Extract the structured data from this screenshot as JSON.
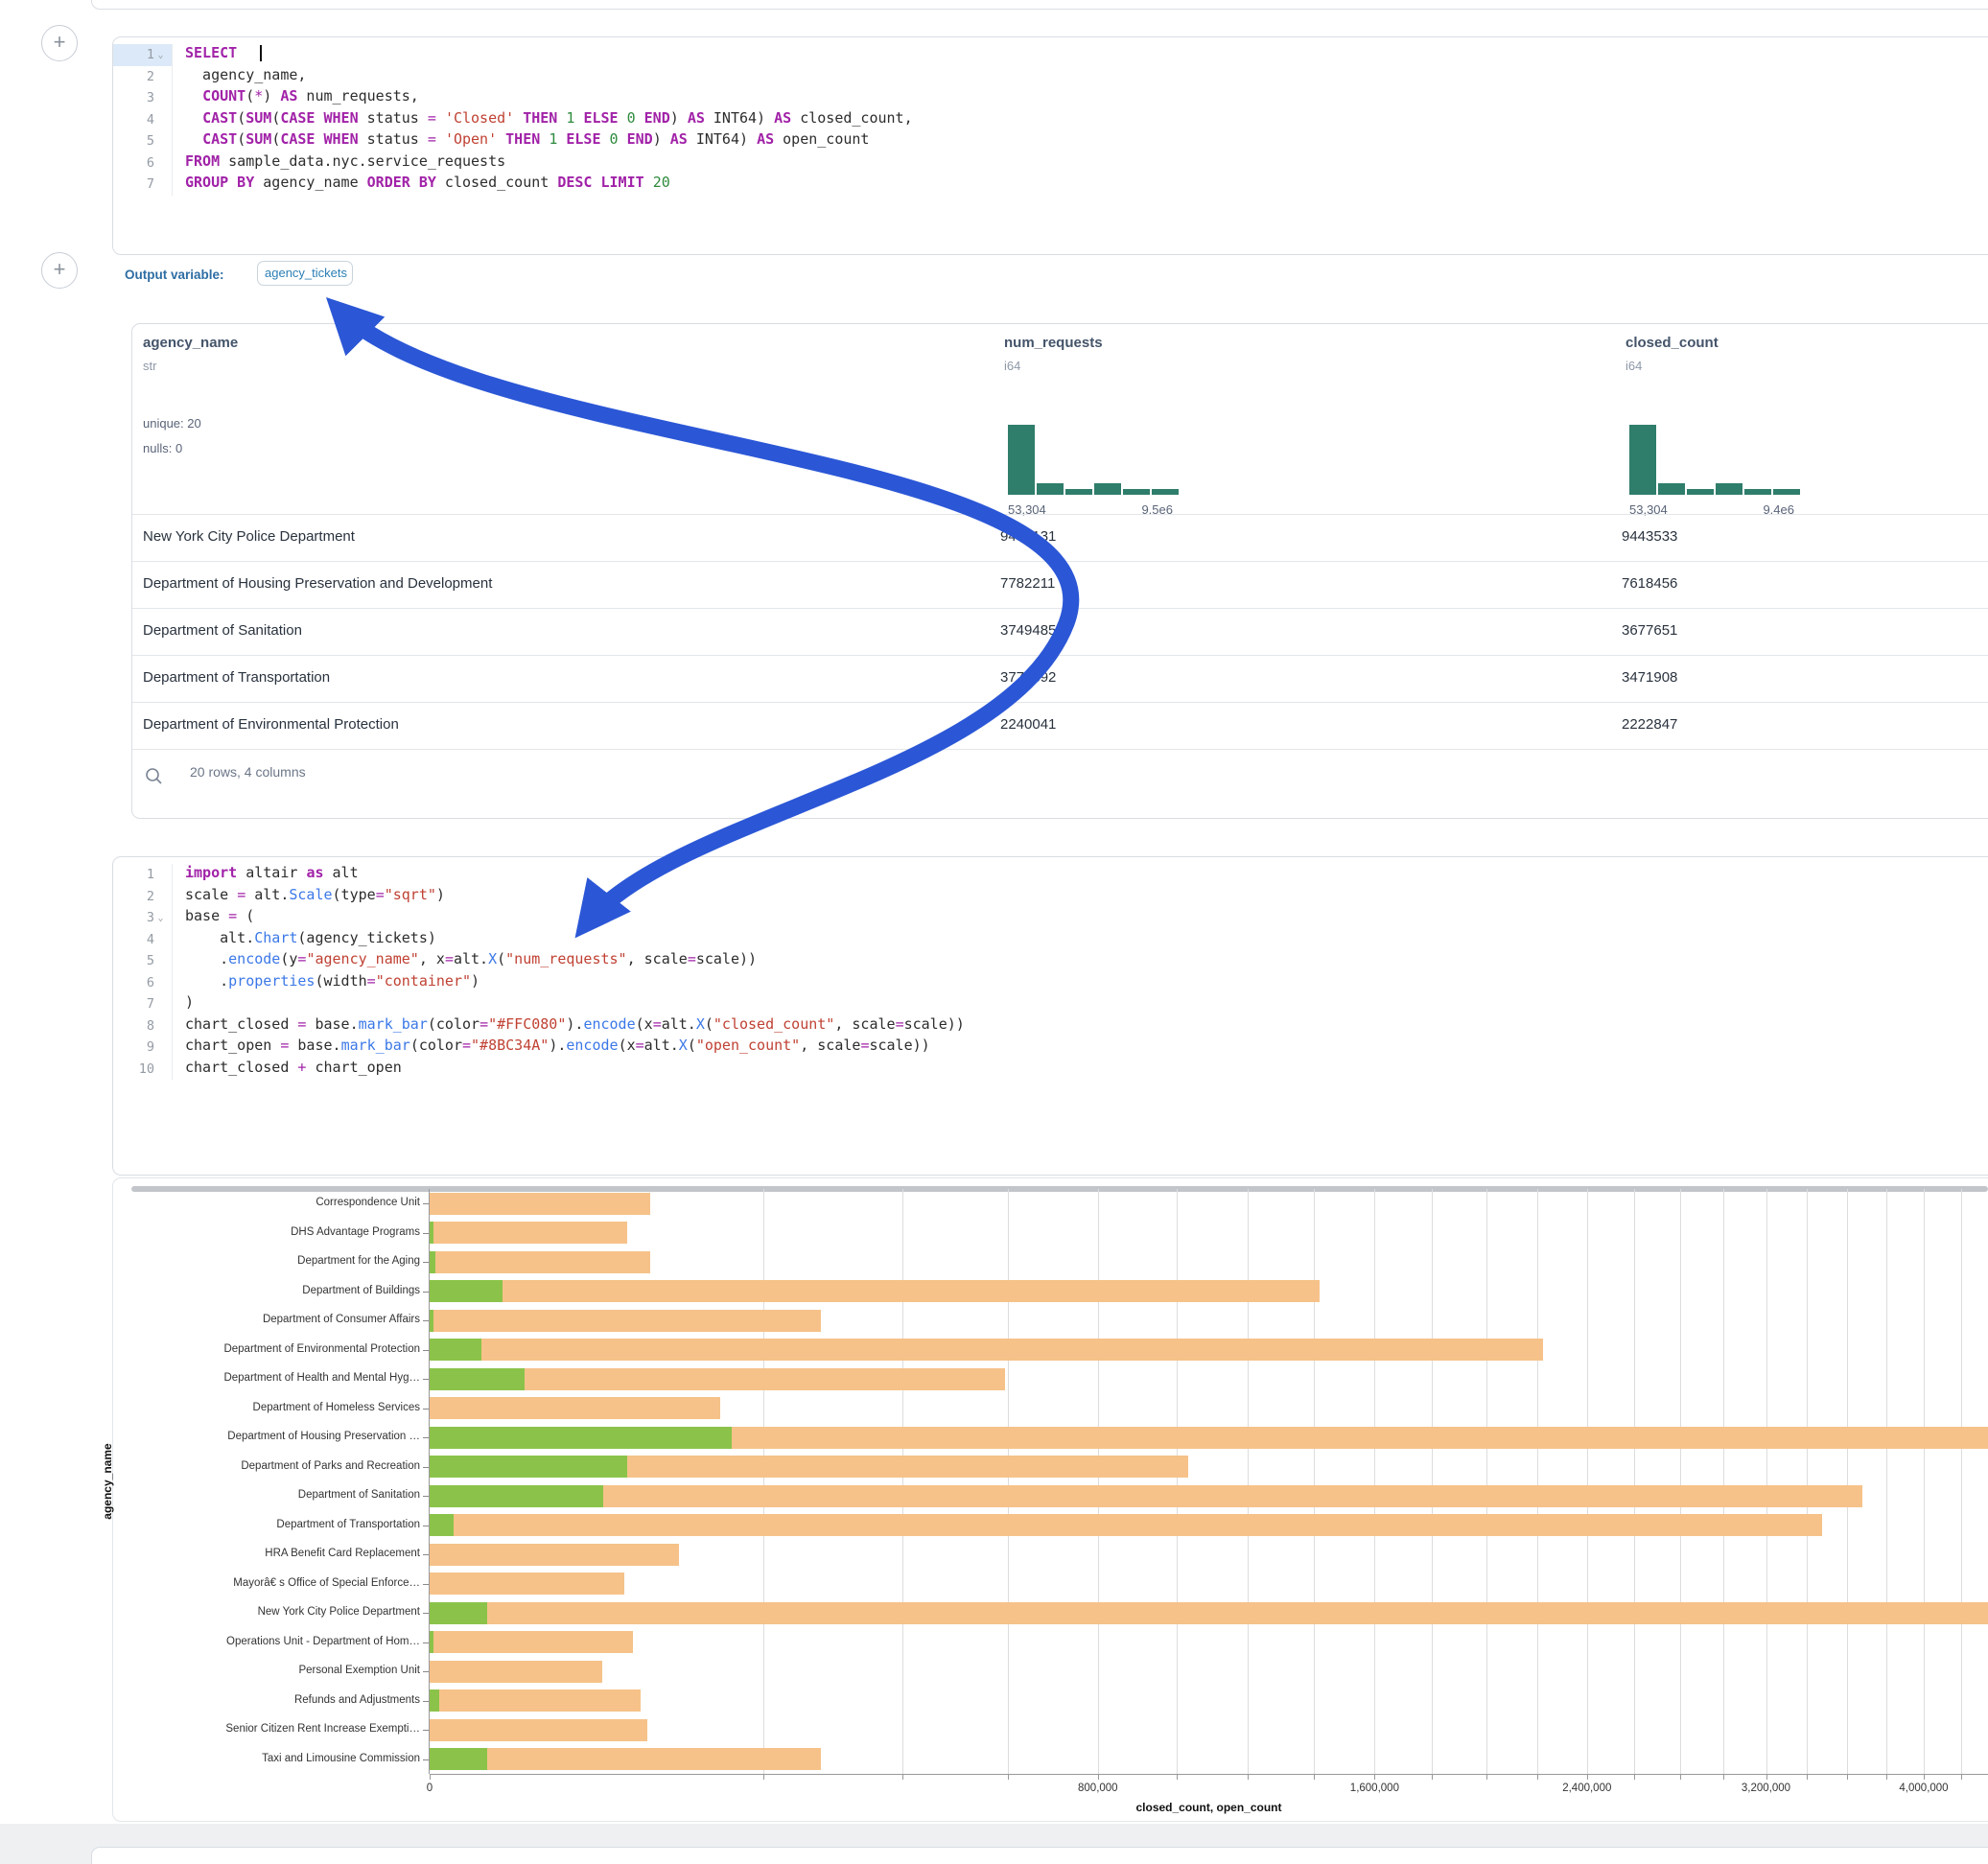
{
  "sql_cell": {
    "lines": [
      {
        "n": "1",
        "fold": true,
        "hl": true,
        "cursor": true,
        "t": [
          [
            "k",
            "SELECT"
          ]
        ]
      },
      {
        "n": "2",
        "t": [
          [
            "p",
            "  agency_name,"
          ]
        ]
      },
      {
        "n": "3",
        "t": [
          [
            "p",
            "  "
          ],
          [
            "k",
            "COUNT"
          ],
          [
            "p",
            "("
          ],
          [
            "o",
            "*"
          ],
          [
            "p",
            ") "
          ],
          [
            "k",
            "AS"
          ],
          [
            "p",
            " num_requests,"
          ]
        ]
      },
      {
        "n": "4",
        "t": [
          [
            "p",
            "  "
          ],
          [
            "k",
            "CAST"
          ],
          [
            "p",
            "("
          ],
          [
            "k",
            "SUM"
          ],
          [
            "p",
            "("
          ],
          [
            "k",
            "CASE"
          ],
          [
            "p",
            " "
          ],
          [
            "k",
            "WHEN"
          ],
          [
            "p",
            " status "
          ],
          [
            "o",
            "="
          ],
          [
            "p",
            " "
          ],
          [
            "s",
            "'Closed'"
          ],
          [
            "p",
            " "
          ],
          [
            "k",
            "THEN"
          ],
          [
            "p",
            " "
          ],
          [
            "n",
            "1"
          ],
          [
            "p",
            " "
          ],
          [
            "k",
            "ELSE"
          ],
          [
            "p",
            " "
          ],
          [
            "n",
            "0"
          ],
          [
            "p",
            " "
          ],
          [
            "k",
            "END"
          ],
          [
            "p",
            ") "
          ],
          [
            "k",
            "AS"
          ],
          [
            "p",
            " INT64) "
          ],
          [
            "k",
            "AS"
          ],
          [
            "p",
            " closed_count,"
          ]
        ]
      },
      {
        "n": "5",
        "t": [
          [
            "p",
            "  "
          ],
          [
            "k",
            "CAST"
          ],
          [
            "p",
            "("
          ],
          [
            "k",
            "SUM"
          ],
          [
            "p",
            "("
          ],
          [
            "k",
            "CASE"
          ],
          [
            "p",
            " "
          ],
          [
            "k",
            "WHEN"
          ],
          [
            "p",
            " status "
          ],
          [
            "o",
            "="
          ],
          [
            "p",
            " "
          ],
          [
            "s",
            "'Open'"
          ],
          [
            "p",
            " "
          ],
          [
            "k",
            "THEN"
          ],
          [
            "p",
            " "
          ],
          [
            "n",
            "1"
          ],
          [
            "p",
            " "
          ],
          [
            "k",
            "ELSE"
          ],
          [
            "p",
            " "
          ],
          [
            "n",
            "0"
          ],
          [
            "p",
            " "
          ],
          [
            "k",
            "END"
          ],
          [
            "p",
            ") "
          ],
          [
            "k",
            "AS"
          ],
          [
            "p",
            " INT64) "
          ],
          [
            "k",
            "AS"
          ],
          [
            "p",
            " open_count"
          ]
        ]
      },
      {
        "n": "6",
        "t": [
          [
            "k",
            "FROM"
          ],
          [
            "p",
            " sample_data.nyc.service_requests"
          ]
        ]
      },
      {
        "n": "7",
        "t": [
          [
            "k",
            "GROUP BY"
          ],
          [
            "p",
            " agency_name "
          ],
          [
            "k",
            "ORDER BY"
          ],
          [
            "p",
            " closed_count "
          ],
          [
            "k",
            "DESC"
          ],
          [
            "p",
            " "
          ],
          [
            "k",
            "LIMIT"
          ],
          [
            "p",
            " "
          ],
          [
            "n",
            "20"
          ]
        ]
      }
    ]
  },
  "output_variable": {
    "label": "Output variable:",
    "value": "agency_tickets"
  },
  "table": {
    "columns": [
      {
        "name": "agency_name",
        "type": "str",
        "stats": [
          "unique: 20",
          "nulls: 0"
        ]
      },
      {
        "name": "num_requests",
        "type": "i64",
        "hist": [
          100,
          17,
          8,
          17,
          8,
          8
        ],
        "hist_min": "53,304",
        "hist_max": "9.5e6"
      },
      {
        "name": "closed_count",
        "type": "i64",
        "hist": [
          100,
          16,
          8,
          16,
          8,
          8
        ],
        "hist_min": "53,304",
        "hist_max": "9.4e6"
      }
    ],
    "rows": [
      [
        "New York City Police Department",
        "9453131",
        "9443533"
      ],
      [
        "Department of Housing Preservation and Development",
        "7782211",
        "7618456"
      ],
      [
        "Department of Sanitation",
        "3749485",
        "3677651"
      ],
      [
        "Department of Transportation",
        "3774892",
        "3471908"
      ],
      [
        "Department of Environmental Protection",
        "2240041",
        "2222847"
      ]
    ],
    "footer": "20 rows, 4 columns"
  },
  "python_cell": {
    "lines": [
      {
        "n": "1",
        "t": [
          [
            "k",
            "import"
          ],
          [
            "p",
            " altair "
          ],
          [
            "k",
            "as"
          ],
          [
            "p",
            " alt"
          ]
        ]
      },
      {
        "n": "2",
        "t": [
          [
            "p",
            "scale "
          ],
          [
            "o",
            "="
          ],
          [
            "p",
            " alt."
          ],
          [
            "f",
            "Scale"
          ],
          [
            "p",
            "(type"
          ],
          [
            "o",
            "="
          ],
          [
            "s",
            "\"sqrt\""
          ],
          [
            "p",
            ")"
          ]
        ]
      },
      {
        "n": "3",
        "fold": true,
        "t": [
          [
            "p",
            "base "
          ],
          [
            "o",
            "="
          ],
          [
            "p",
            " ("
          ]
        ]
      },
      {
        "n": "4",
        "t": [
          [
            "p",
            "    alt."
          ],
          [
            "f",
            "Chart"
          ],
          [
            "p",
            "(agency_tickets)"
          ]
        ]
      },
      {
        "n": "5",
        "t": [
          [
            "p",
            "    ."
          ],
          [
            "f",
            "encode"
          ],
          [
            "p",
            "(y"
          ],
          [
            "o",
            "="
          ],
          [
            "s",
            "\"agency_name\""
          ],
          [
            "p",
            ", x"
          ],
          [
            "o",
            "="
          ],
          [
            "p",
            "alt."
          ],
          [
            "f",
            "X"
          ],
          [
            "p",
            "("
          ],
          [
            "s",
            "\"num_requests\""
          ],
          [
            "p",
            ", scale"
          ],
          [
            "o",
            "="
          ],
          [
            "p",
            "scale))"
          ]
        ]
      },
      {
        "n": "6",
        "t": [
          [
            "p",
            "    ."
          ],
          [
            "f",
            "properties"
          ],
          [
            "p",
            "(width"
          ],
          [
            "o",
            "="
          ],
          [
            "s",
            "\"container\""
          ],
          [
            "p",
            ")"
          ]
        ]
      },
      {
        "n": "7",
        "t": [
          [
            "p",
            ")"
          ]
        ]
      },
      {
        "n": "8",
        "t": [
          [
            "p",
            "chart_closed "
          ],
          [
            "o",
            "="
          ],
          [
            "p",
            " base."
          ],
          [
            "f",
            "mark_bar"
          ],
          [
            "p",
            "(color"
          ],
          [
            "o",
            "="
          ],
          [
            "s",
            "\"#FFC080\""
          ],
          [
            "p",
            ")."
          ],
          [
            "f",
            "encode"
          ],
          [
            "p",
            "(x"
          ],
          [
            "o",
            "="
          ],
          [
            "p",
            "alt."
          ],
          [
            "f",
            "X"
          ],
          [
            "p",
            "("
          ],
          [
            "s",
            "\"closed_count\""
          ],
          [
            "p",
            ", scale"
          ],
          [
            "o",
            "="
          ],
          [
            "p",
            "scale))"
          ]
        ]
      },
      {
        "n": "9",
        "t": [
          [
            "p",
            "chart_open "
          ],
          [
            "o",
            "="
          ],
          [
            "p",
            " base."
          ],
          [
            "f",
            "mark_bar"
          ],
          [
            "p",
            "(color"
          ],
          [
            "o",
            "="
          ],
          [
            "s",
            "\"#8BC34A\""
          ],
          [
            "p",
            ")."
          ],
          [
            "f",
            "encode"
          ],
          [
            "p",
            "(x"
          ],
          [
            "o",
            "="
          ],
          [
            "p",
            "alt."
          ],
          [
            "f",
            "X"
          ],
          [
            "p",
            "("
          ],
          [
            "s",
            "\"open_count\""
          ],
          [
            "p",
            ", scale"
          ],
          [
            "o",
            "="
          ],
          [
            "p",
            "scale))"
          ]
        ]
      },
      {
        "n": "10",
        "t": [
          [
            "p",
            "chart_closed "
          ],
          [
            "o",
            "+"
          ],
          [
            "p",
            " chart_open"
          ]
        ]
      }
    ]
  },
  "chart_data": {
    "type": "bar",
    "orientation": "horizontal",
    "x_scale": "sqrt",
    "xlabel": "closed_count, open_count",
    "ylabel": "agency_name",
    "grid": true,
    "gridline_step": 200000,
    "x_ticks": [
      {
        "v": 0,
        "label": "0"
      },
      {
        "v": 800000,
        "label": "800,000"
      },
      {
        "v": 1600000,
        "label": "1,600,000"
      },
      {
        "v": 2400000,
        "label": "2,400,000"
      },
      {
        "v": 3200000,
        "label": "3,200,000"
      },
      {
        "v": 4000000,
        "label": "4,000,000"
      }
    ],
    "colors": {
      "closed_count": "#f6c289",
      "open_count": "#8bc34a"
    },
    "categories": [
      "Correspondence Unit",
      "DHS Advantage Programs",
      "Department for the Aging",
      "Department of Buildings",
      "Department of Consumer Affairs",
      "Department of Environmental Protection",
      "Department of Health and Mental Hyg…",
      "Department of Homeless Services",
      "Department of Housing Preservation …",
      "Department of Parks and Recreation",
      "Department of Sanitation",
      "Department of Transportation",
      "HRA Benefit Card Replacement",
      "Mayorâ€ s Office of Special Enforce…",
      "New York City Police Department",
      "Operations Unit - Department of Hom…",
      "Personal Exemption Unit",
      "Refunds and Adjustments",
      "Senior Citizen Rent Increase Exempti…",
      "Taxi and Limousine Commission"
    ],
    "series": [
      {
        "name": "closed_count",
        "values": [
          87000,
          70000,
          87000,
          1420000,
          274000,
          2222847,
          593000,
          151000,
          7618456,
          1030000,
          3677651,
          3471908,
          111000,
          68000,
          9443533,
          74000,
          53304,
          80000,
          85000,
          274000
        ]
      },
      {
        "name": "open_count",
        "values": [
          0,
          25,
          60,
          9500,
          25,
          4800,
          16000,
          0,
          163755,
          70000,
          54000,
          1000,
          0,
          0,
          6000,
          25,
          0,
          160,
          0,
          6000
        ]
      }
    ]
  },
  "annotation": {
    "arrow_color": "#2b57d6"
  },
  "icons": {
    "plus": "+",
    "fold_chevron": "⌄",
    "search": "search"
  }
}
